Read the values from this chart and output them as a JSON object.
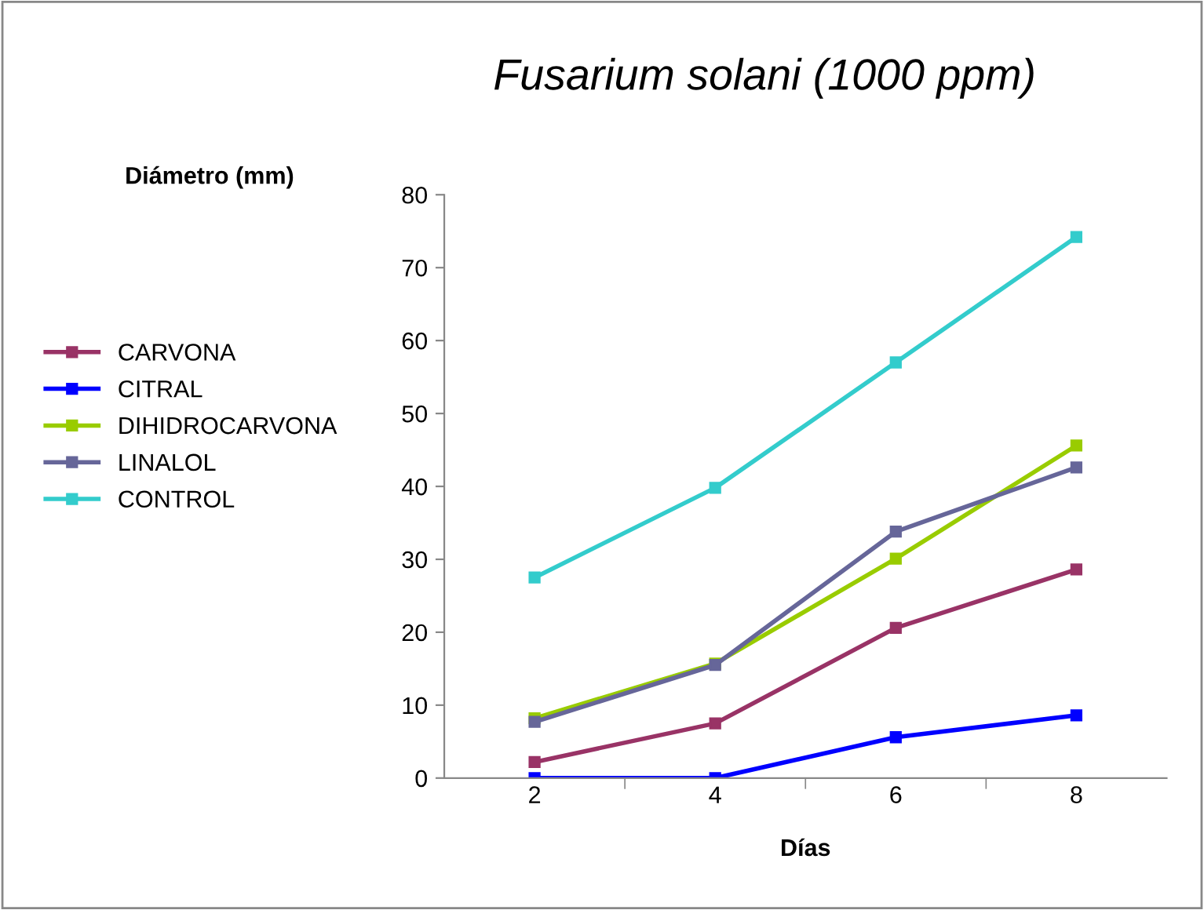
{
  "chart_data": {
    "type": "line",
    "title": "Fusarium solani (1000 ppm)",
    "xlabel": "Días",
    "ylabel": "Diámetro (mm)",
    "categories": [
      "2",
      "4",
      "6",
      "8"
    ],
    "series": [
      {
        "name": "CARVONA",
        "color": "#993366",
        "values": [
          2.2,
          7.5,
          20.6,
          28.6
        ]
      },
      {
        "name": "CITRAL",
        "color": "#0000ff",
        "values": [
          0,
          0,
          5.6,
          8.6
        ]
      },
      {
        "name": "DIHIDROCARVONA",
        "color": "#99cc00",
        "values": [
          8.2,
          15.7,
          30.1,
          45.6
        ]
      },
      {
        "name": "LINALOL",
        "color": "#666699",
        "values": [
          7.7,
          15.5,
          33.8,
          42.6
        ]
      },
      {
        "name": "CONTROL",
        "color": "#33cccc",
        "values": [
          27.5,
          39.8,
          57.0,
          74.2
        ]
      }
    ],
    "ylim": [
      0,
      80
    ],
    "yticks": [
      0,
      10,
      20,
      30,
      40,
      50,
      60,
      70,
      80
    ],
    "marker": "square",
    "line_style": "solid",
    "grid": false,
    "legend": "left"
  }
}
